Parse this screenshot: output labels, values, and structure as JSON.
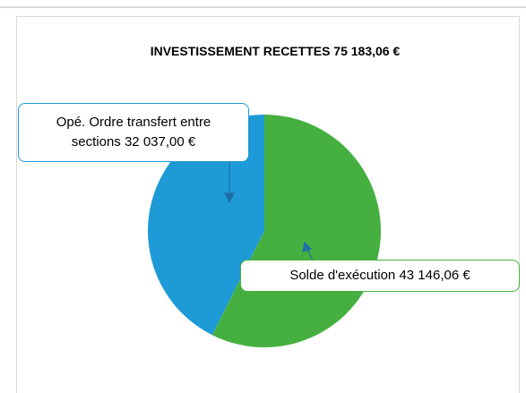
{
  "chart_data": {
    "type": "pie",
    "title": "INVESTISSEMENT RECETTES 75 183,06 €",
    "categories": [
      "Opé. Ordre transfert entre sections",
      "Solde d'exécution"
    ],
    "values": [
      32037.0,
      43146.06
    ],
    "value_labels": [
      "32 037,00 €",
      "43 146,06 €"
    ],
    "colors": [
      "#1e9bd7",
      "#45b03f"
    ]
  }
}
